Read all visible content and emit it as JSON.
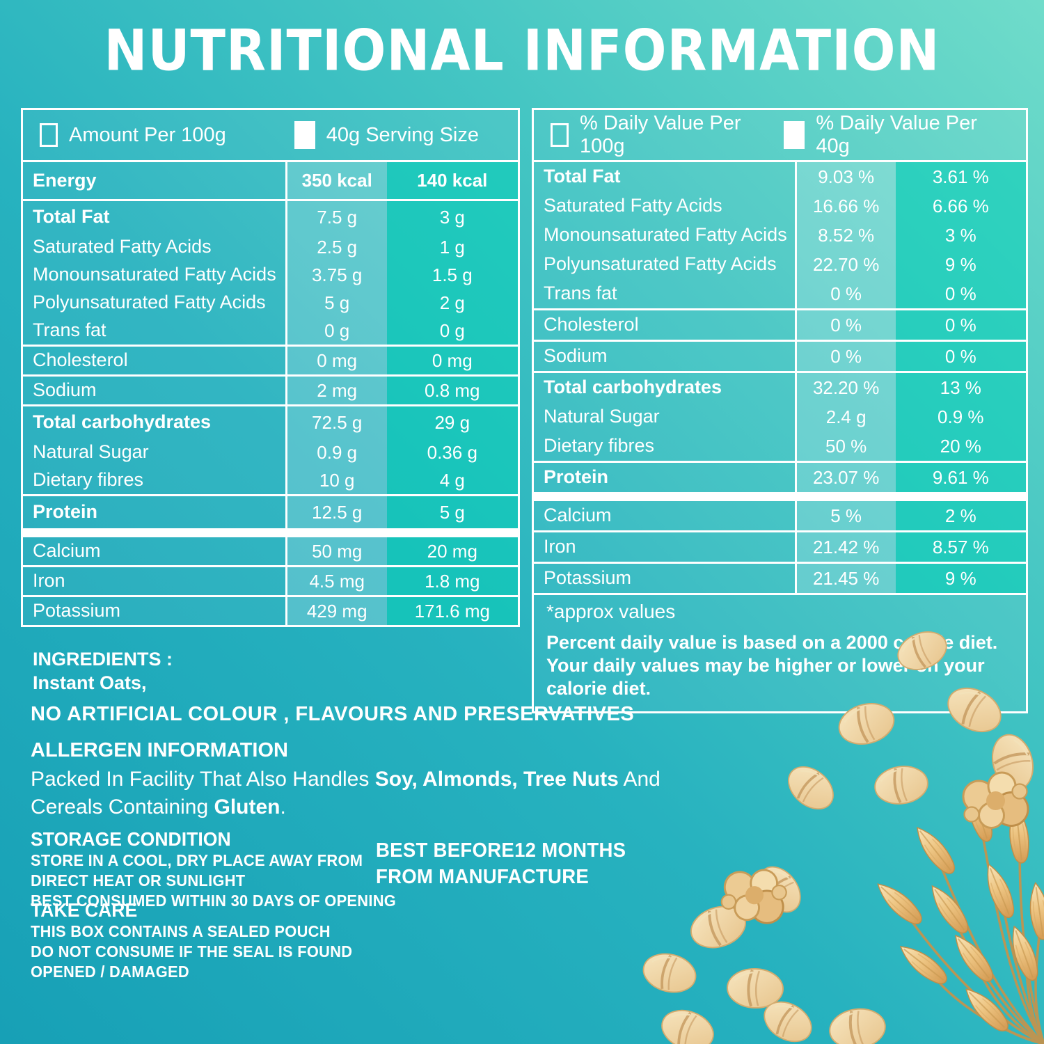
{
  "title": "NUTRITIONAL INFORMATION",
  "colors": {
    "background_top_right": "#70dcca",
    "background_bottom_left": "#17a0b6",
    "column_40g_band": "#12bdb2",
    "column_100g_band": "#4cc6ca",
    "table_border": "#ffffff",
    "text": "#ffffff",
    "oat_flake": "#edca92"
  },
  "left_table": {
    "legend_100g": "Amount Per 100g",
    "legend_40g": "40g Serving Size",
    "sections": [
      {
        "rows": [
          {
            "label": "Energy",
            "allbold": true,
            "v100": "350 kcal",
            "v40": "140 kcal"
          }
        ]
      },
      {
        "rows": [
          {
            "label": "Total Fat",
            "bold": true,
            "v100": "7.5 g",
            "v40": "3 g"
          },
          {
            "label": "Saturated Fatty  Acids",
            "v100": "2.5 g",
            "v40": "1 g"
          },
          {
            "label": "Monounsaturated Fatty Acids",
            "v100": "3.75 g",
            "v40": "1.5 g"
          },
          {
            "label": "Polyunsaturated Fatty Acids",
            "v100": "5 g",
            "v40": "2 g"
          },
          {
            "label": "Trans fat",
            "v100": "0 g",
            "v40": "0 g"
          }
        ]
      },
      {
        "rows": [
          {
            "label": "Cholesterol",
            "v100": "0 mg",
            "v40": "0 mg"
          }
        ]
      },
      {
        "rows": [
          {
            "label": "Sodium",
            "v100": "2 mg",
            "v40": "0.8 mg"
          }
        ]
      },
      {
        "rows": [
          {
            "label": "Total carbohydrates",
            "bold": true,
            "v100": "72.5 g",
            "v40": "29 g"
          },
          {
            "label": "Natural Sugar",
            "v100": "0.9 g",
            "v40": "0.36 g"
          },
          {
            "label": "Dietary fibres",
            "v100": "10 g",
            "v40": "4 g"
          }
        ]
      },
      {
        "rows": [
          {
            "label": "Protein",
            "bold": true,
            "v100": "12.5 g",
            "v40": "5 g"
          }
        ]
      },
      {
        "thick_before": true,
        "rows": [
          {
            "label": "Calcium",
            "v100": "50 mg",
            "v40": "20 mg"
          }
        ]
      },
      {
        "rows": [
          {
            "label": "Iron",
            "v100": "4.5 mg",
            "v40": "1.8 mg"
          }
        ]
      },
      {
        "rows": [
          {
            "label": "Potassium",
            "v100": "429 mg",
            "v40": "171.6 mg"
          }
        ]
      }
    ]
  },
  "right_table": {
    "legend_100g": "% Daily Value Per 100g",
    "legend_40g": "% Daily Value Per 40g",
    "sections": [
      {
        "rows": [
          {
            "label": "Total Fat",
            "bold": true,
            "v100": "9.03 %",
            "v40": "3.61 %"
          },
          {
            "label": "Saturated Fatty  Acids",
            "v100": "16.66 %",
            "v40": "6.66 %"
          },
          {
            "label": "Monounsaturated Fatty Acids",
            "v100": "8.52 %",
            "v40": "3 %"
          },
          {
            "label": "Polyunsaturated Fatty Acids",
            "v100": "22.70 %",
            "v40": "9 %"
          },
          {
            "label": "Trans fat",
            "v100": "0 %",
            "v40": "0 %"
          }
        ]
      },
      {
        "rows": [
          {
            "label": "Cholesterol",
            "v100": "0 %",
            "v40": "0 %"
          }
        ]
      },
      {
        "rows": [
          {
            "label": "Sodium",
            "v100": "0 %",
            "v40": "0 %"
          }
        ]
      },
      {
        "rows": [
          {
            "label": "Total carbohydrates",
            "bold": true,
            "v100": "32.20 %",
            "v40": "13 %"
          },
          {
            "label": "Natural Sugar",
            "v100": "2.4 g",
            "v40": "0.9 %"
          },
          {
            "label": "Dietary fibres",
            "v100": "50 %",
            "v40": "20 %"
          }
        ]
      },
      {
        "rows": [
          {
            "label": "Protein",
            "bold": true,
            "v100": "23.07 %",
            "v40": "9.61 %"
          }
        ]
      },
      {
        "thick_before": true,
        "rows": [
          {
            "label": "Calcium",
            "v100": "5 %",
            "v40": "2 %"
          }
        ]
      },
      {
        "rows": [
          {
            "label": "Iron",
            "v100": "21.42 %",
            "v40": "8.57 %"
          }
        ]
      },
      {
        "rows": [
          {
            "label": "Potassium",
            "v100": "21.45 %",
            "v40": "9 %"
          }
        ]
      }
    ],
    "footnote": "*approx values",
    "note": "Percent daily value is based on a 2000 calorie diet. Your daily values may be higher or lower on your calorie diet."
  },
  "ingredients": {
    "heading": "INGREDIENTS :",
    "value": "Instant Oats,"
  },
  "claims": "NO ARTIFICIAL COLOUR , FLAVOURS AND PRESERVATIVES",
  "allergen": {
    "heading": "ALLERGEN INFORMATION",
    "t1": "Packed In Facility That Also Handles ",
    "b1": "Soy, Almonds, Tree Nuts",
    "t2": " And Cereals Containing ",
    "b2": "Gluten",
    "t3": "."
  },
  "storage": {
    "heading": "STORAGE CONDITION",
    "lines": [
      "STORE  IN A COOL, DRY PLACE AWAY FROM",
      "DIRECT HEAT OR SUNLIGHT",
      "BEST CONSUMED WITHIN  30 DAYS OF OPENING"
    ]
  },
  "best_before": {
    "line1": "BEST BEFORE12 MONTHS",
    "line2": "FROM MANUFACTURE"
  },
  "take_care": {
    "heading": "TAKE CARE",
    "lines": [
      "THIS BOX CONTAINS A SEALED POUCH",
      "DO NOT CONSUME IF THE SEAL IS FOUND",
      "OPENED / DAMAGED"
    ]
  }
}
